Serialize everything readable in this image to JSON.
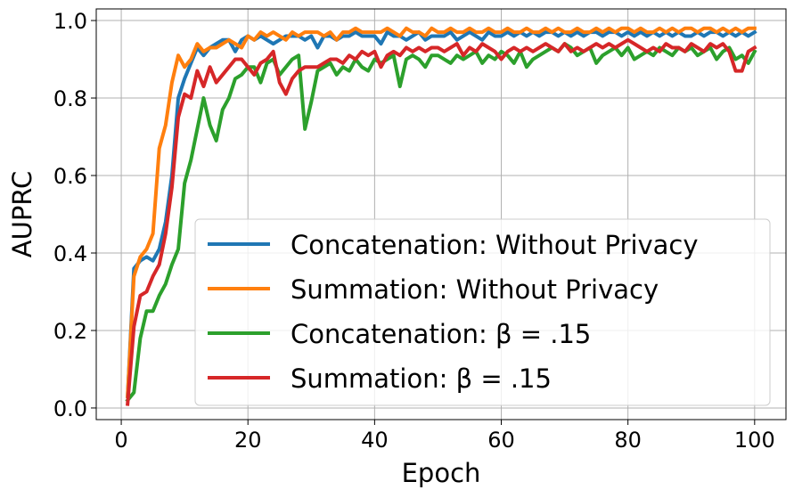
{
  "chart_data": {
    "type": "line",
    "title": "",
    "xlabel": "Epoch",
    "ylabel": "AUPRC",
    "xlim": [
      -3.95,
      104.95
    ],
    "ylim": [
      -0.03,
      1.03
    ],
    "xticks": [
      0,
      20,
      40,
      60,
      80,
      100
    ],
    "yticks": [
      0.0,
      0.2,
      0.4,
      0.6,
      0.8,
      1.0
    ],
    "xtick_labels": [
      "0",
      "20",
      "40",
      "60",
      "80",
      "100"
    ],
    "ytick_labels": [
      "0.0",
      "0.2",
      "0.4",
      "0.6",
      "0.8",
      "1.0"
    ],
    "grid": true,
    "legend_position": "lower-right",
    "x": [
      1,
      2,
      3,
      4,
      5,
      6,
      7,
      8,
      9,
      10,
      11,
      12,
      13,
      14,
      15,
      16,
      17,
      18,
      19,
      20,
      21,
      22,
      23,
      24,
      25,
      26,
      27,
      28,
      29,
      30,
      31,
      32,
      33,
      34,
      35,
      36,
      37,
      38,
      39,
      40,
      41,
      42,
      43,
      44,
      45,
      46,
      47,
      48,
      49,
      50,
      51,
      52,
      53,
      54,
      55,
      56,
      57,
      58,
      59,
      60,
      61,
      62,
      63,
      64,
      65,
      66,
      67,
      68,
      69,
      70,
      71,
      72,
      73,
      74,
      75,
      76,
      77,
      78,
      79,
      80,
      81,
      82,
      83,
      84,
      85,
      86,
      87,
      88,
      89,
      90,
      91,
      92,
      93,
      94,
      95,
      96,
      97,
      98,
      99,
      100
    ],
    "series": [
      {
        "name": "Concatenation: Without Privacy",
        "color": "#1f77b4",
        "values": [
          0.03,
          0.36,
          0.38,
          0.39,
          0.38,
          0.41,
          0.48,
          0.6,
          0.8,
          0.85,
          0.89,
          0.93,
          0.91,
          0.93,
          0.94,
          0.95,
          0.95,
          0.92,
          0.95,
          0.96,
          0.95,
          0.96,
          0.95,
          0.94,
          0.95,
          0.96,
          0.96,
          0.96,
          0.95,
          0.96,
          0.93,
          0.96,
          0.96,
          0.95,
          0.96,
          0.96,
          0.97,
          0.96,
          0.96,
          0.96,
          0.94,
          0.97,
          0.96,
          0.96,
          0.95,
          0.96,
          0.97,
          0.95,
          0.96,
          0.96,
          0.96,
          0.97,
          0.95,
          0.96,
          0.97,
          0.96,
          0.95,
          0.97,
          0.96,
          0.96,
          0.97,
          0.96,
          0.97,
          0.96,
          0.97,
          0.96,
          0.97,
          0.97,
          0.96,
          0.97,
          0.96,
          0.97,
          0.96,
          0.97,
          0.97,
          0.96,
          0.97,
          0.97,
          0.96,
          0.97,
          0.96,
          0.97,
          0.96,
          0.97,
          0.96,
          0.97,
          0.96,
          0.97,
          0.96,
          0.96,
          0.97,
          0.96,
          0.97,
          0.97,
          0.96,
          0.97,
          0.96,
          0.97,
          0.96,
          0.97
        ]
      },
      {
        "name": "Summation: Without Privacy",
        "color": "#ff7f0e",
        "values": [
          0.03,
          0.34,
          0.39,
          0.41,
          0.45,
          0.67,
          0.73,
          0.84,
          0.91,
          0.88,
          0.9,
          0.94,
          0.92,
          0.93,
          0.93,
          0.94,
          0.95,
          0.94,
          0.93,
          0.96,
          0.95,
          0.97,
          0.96,
          0.97,
          0.96,
          0.95,
          0.97,
          0.96,
          0.97,
          0.97,
          0.97,
          0.96,
          0.97,
          0.95,
          0.97,
          0.97,
          0.98,
          0.97,
          0.97,
          0.97,
          0.97,
          0.98,
          0.97,
          0.96,
          0.98,
          0.97,
          0.97,
          0.96,
          0.98,
          0.97,
          0.97,
          0.98,
          0.97,
          0.97,
          0.98,
          0.97,
          0.97,
          0.98,
          0.97,
          0.97,
          0.98,
          0.97,
          0.97,
          0.98,
          0.97,
          0.97,
          0.98,
          0.97,
          0.98,
          0.97,
          0.97,
          0.98,
          0.97,
          0.97,
          0.98,
          0.97,
          0.98,
          0.97,
          0.98,
          0.98,
          0.97,
          0.98,
          0.97,
          0.97,
          0.98,
          0.97,
          0.98,
          0.97,
          0.98,
          0.98,
          0.97,
          0.98,
          0.98,
          0.97,
          0.98,
          0.97,
          0.98,
          0.97,
          0.98,
          0.98
        ]
      },
      {
        "name": "Concatenation: β = .15",
        "color": "#2ca02c",
        "values": [
          0.02,
          0.04,
          0.18,
          0.25,
          0.25,
          0.29,
          0.32,
          0.37,
          0.41,
          0.58,
          0.64,
          0.72,
          0.8,
          0.73,
          0.69,
          0.77,
          0.8,
          0.85,
          0.86,
          0.88,
          0.88,
          0.84,
          0.89,
          0.9,
          0.86,
          0.88,
          0.9,
          0.91,
          0.72,
          0.79,
          0.87,
          0.88,
          0.89,
          0.86,
          0.88,
          0.87,
          0.9,
          0.88,
          0.87,
          0.9,
          0.89,
          0.9,
          0.91,
          0.83,
          0.9,
          0.91,
          0.9,
          0.88,
          0.91,
          0.91,
          0.9,
          0.89,
          0.91,
          0.9,
          0.91,
          0.92,
          0.89,
          0.91,
          0.9,
          0.92,
          0.91,
          0.89,
          0.92,
          0.88,
          0.9,
          0.91,
          0.92,
          0.93,
          0.92,
          0.94,
          0.93,
          0.91,
          0.92,
          0.93,
          0.89,
          0.91,
          0.92,
          0.93,
          0.91,
          0.93,
          0.9,
          0.91,
          0.92,
          0.91,
          0.93,
          0.92,
          0.91,
          0.93,
          0.92,
          0.93,
          0.91,
          0.92,
          0.93,
          0.9,
          0.92,
          0.93,
          0.9,
          0.91,
          0.89,
          0.92
        ]
      },
      {
        "name": "Summation: β = .15",
        "color": "#d62728",
        "values": [
          0.01,
          0.21,
          0.29,
          0.3,
          0.34,
          0.37,
          0.45,
          0.57,
          0.75,
          0.81,
          0.8,
          0.87,
          0.83,
          0.88,
          0.84,
          0.86,
          0.88,
          0.9,
          0.9,
          0.88,
          0.86,
          0.89,
          0.9,
          0.92,
          0.84,
          0.81,
          0.85,
          0.87,
          0.88,
          0.88,
          0.88,
          0.89,
          0.9,
          0.9,
          0.89,
          0.91,
          0.9,
          0.92,
          0.91,
          0.92,
          0.88,
          0.91,
          0.92,
          0.91,
          0.93,
          0.92,
          0.93,
          0.92,
          0.93,
          0.93,
          0.92,
          0.93,
          0.94,
          0.91,
          0.93,
          0.92,
          0.94,
          0.93,
          0.92,
          0.9,
          0.92,
          0.93,
          0.92,
          0.93,
          0.92,
          0.93,
          0.94,
          0.93,
          0.92,
          0.94,
          0.92,
          0.93,
          0.92,
          0.93,
          0.94,
          0.93,
          0.94,
          0.93,
          0.94,
          0.95,
          0.94,
          0.93,
          0.92,
          0.93,
          0.92,
          0.94,
          0.93,
          0.93,
          0.92,
          0.94,
          0.93,
          0.92,
          0.94,
          0.93,
          0.94,
          0.92,
          0.87,
          0.87,
          0.92,
          0.93
        ]
      }
    ]
  }
}
